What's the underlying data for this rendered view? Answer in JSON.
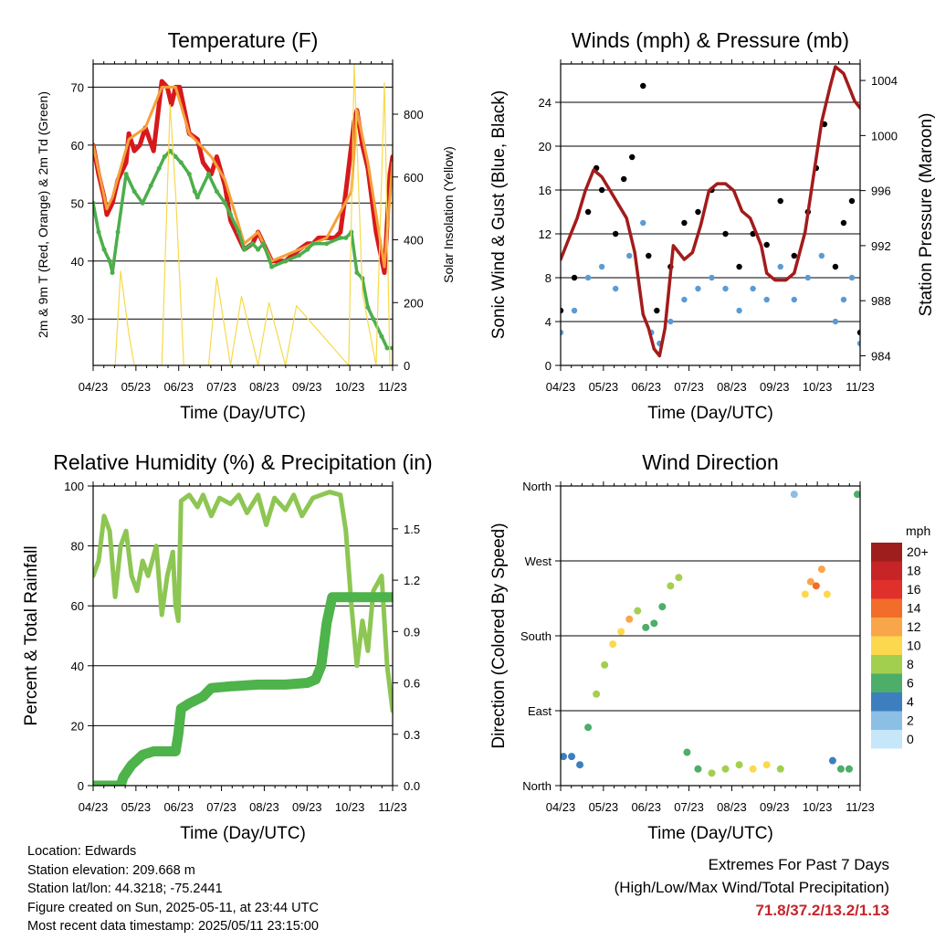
{
  "chart_data": [
    {
      "type": "line",
      "title": "Temperature (F)",
      "xlabel": "Time (Day/UTC)",
      "ylabel": "2m & 9m T (Red, Orange) & 2m Td (Green)",
      "ylabel_right": "Solar Insolation (Yellow)",
      "x_ticks": [
        "04/23",
        "05/23",
        "06/23",
        "07/23",
        "08/23",
        "09/23",
        "10/23",
        "11/23"
      ],
      "ylim": [
        22,
        74
      ],
      "yticks": [
        30,
        40,
        50,
        60,
        70
      ],
      "ylim_right": [
        0,
        960
      ],
      "yticks_right": [
        0,
        200,
        400,
        600,
        800
      ],
      "grid": true,
      "series": [
        {
          "name": "2m T",
          "color": "#d7191c",
          "x": [
            0,
            0.2,
            0.4,
            0.5,
            0.7,
            0.9,
            1.2,
            1.3,
            1.5,
            1.7,
            1.9,
            2.2,
            2.5,
            2.7,
            2.85,
            3.0,
            3.15,
            3.5,
            3.8,
            4.0,
            4.3,
            4.5,
            4.8,
            5.0,
            5.3,
            5.5,
            5.8,
            6.0,
            6.5,
            7.0,
            7.5,
            7.8,
            8.0,
            8.2,
            8.5,
            8.8,
            9.0,
            9.2,
            9.4,
            9.5,
            9.6,
            9.8,
            10.0,
            10.3,
            10.6,
            10.8,
            10.9
          ],
          "y": [
            60,
            55,
            51,
            48,
            50,
            54,
            57,
            62,
            59,
            60,
            63,
            59,
            71,
            70,
            67,
            70,
            70,
            62,
            61,
            57,
            55,
            58,
            53,
            47,
            44,
            42,
            43,
            45,
            40,
            40,
            42,
            43,
            43,
            44,
            44,
            44,
            45,
            52,
            60,
            64,
            66,
            60,
            56,
            45,
            38,
            55,
            58
          ]
        },
        {
          "name": "9m T",
          "color": "#f5a03a",
          "x": [
            0,
            0.5,
            0.7,
            1.3,
            1.9,
            2.5,
            3.0,
            3.5,
            4.3,
            4.8,
            5.5,
            6.0,
            6.5,
            7.5,
            8.5,
            9.4,
            9.6,
            10.0,
            10.6,
            10.9
          ],
          "y": [
            60,
            49,
            51,
            61,
            63,
            70,
            70,
            62,
            58,
            54,
            43,
            45,
            40,
            42,
            44,
            52,
            66,
            57,
            39,
            57
          ]
        },
        {
          "name": "2m Td",
          "color": "#4cae4c",
          "x": [
            0,
            0.2,
            0.4,
            0.6,
            0.7,
            0.9,
            1.2,
            1.5,
            1.8,
            2.1,
            2.4,
            2.6,
            2.8,
            3.0,
            3.2,
            3.5,
            3.7,
            3.8,
            4.2,
            4.5,
            4.8,
            5.0,
            5.3,
            5.5,
            5.8,
            6.0,
            6.2,
            6.5,
            7.0,
            7.5,
            7.8,
            8.0,
            8.5,
            9.0,
            9.2,
            9.4,
            9.6,
            9.8,
            10.0,
            10.2,
            10.5,
            10.7,
            10.9
          ],
          "y": [
            50,
            45,
            42,
            40,
            38,
            45,
            55,
            52,
            50,
            53,
            56,
            58,
            59,
            58,
            57,
            55,
            52,
            51,
            55,
            52,
            50,
            48,
            45,
            42,
            43,
            42,
            43,
            39,
            40,
            41,
            42,
            43,
            43,
            44,
            44,
            45,
            38,
            37,
            32,
            30,
            27,
            25,
            25
          ]
        },
        {
          "name": "Solar Insolation",
          "color": "#f7d94c",
          "axis": "right",
          "x": [
            0.8,
            1.0,
            1.3,
            1.5,
            2.5,
            2.8,
            3.0,
            3.3,
            4.2,
            4.5,
            5.0,
            5.4,
            6.0,
            6.4,
            7.0,
            7.4,
            9.3,
            9.5,
            9.8,
            10.3,
            10.6,
            10.8
          ],
          "y": [
            0,
            300,
            100,
            0,
            0,
            830,
            550,
            0,
            0,
            280,
            0,
            220,
            0,
            200,
            0,
            190,
            0,
            960,
            230,
            0,
            900,
            0
          ]
        }
      ]
    },
    {
      "type": "scatter",
      "title": "Winds (mph) & Pressure (mb)",
      "xlabel": "Time (Day/UTC)",
      "ylabel": "Sonic Wind & Gust (Blue, Black)",
      "ylabel_right": "Station Pressure (Maroon)",
      "x_ticks": [
        "04/23",
        "05/23",
        "06/23",
        "07/23",
        "08/23",
        "09/23",
        "10/23",
        "11/23"
      ],
      "ylim": [
        0,
        27.5
      ],
      "yticks": [
        0,
        4,
        8,
        12,
        16,
        20,
        24
      ],
      "ylim_right": [
        983.3,
        1005.2
      ],
      "yticks_right": [
        984,
        988,
        992,
        996,
        1000,
        1004
      ],
      "grid": true,
      "series": [
        {
          "name": "Gust",
          "color": "#000000",
          "x": [
            0,
            0.5,
            1.0,
            1.3,
            1.5,
            2.0,
            2.3,
            2.6,
            3.0,
            3.2,
            3.5,
            4.0,
            4.5,
            5.0,
            5.5,
            6.0,
            6.5,
            7.0,
            7.5,
            8.0,
            8.5,
            9.0,
            9.3,
            9.6,
            10.0,
            10.3,
            10.6,
            10.9
          ],
          "y": [
            5,
            8,
            14,
            18,
            16,
            12,
            17,
            19,
            25.5,
            10,
            5,
            9,
            13,
            14,
            16,
            12,
            9,
            12,
            11,
            15,
            10,
            14,
            18,
            22,
            9,
            13,
            15,
            3
          ]
        },
        {
          "name": "Wind",
          "color": "#5b9bd5",
          "x": [
            0,
            0.5,
            1.0,
            1.5,
            2.0,
            2.5,
            3.0,
            3.3,
            3.6,
            4.0,
            4.5,
            5.0,
            5.5,
            6.0,
            6.5,
            7.0,
            7.5,
            8.0,
            8.5,
            9.0,
            9.5,
            10.0,
            10.3,
            10.6,
            10.9
          ],
          "y": [
            3,
            5,
            8,
            9,
            7,
            10,
            13,
            3,
            2,
            4,
            6,
            7,
            8,
            7,
            5,
            7,
            6,
            9,
            6,
            8,
            10,
            4,
            6,
            8,
            2
          ]
        },
        {
          "name": "Station Pressure",
          "color": "#a31b1b",
          "axis": "right",
          "x": [
            0,
            0.3,
            0.6,
            0.9,
            1.2,
            1.5,
            1.8,
            2.1,
            2.4,
            2.7,
            3.0,
            3.2,
            3.4,
            3.6,
            3.8,
            4.1,
            4.5,
            4.8,
            5.1,
            5.4,
            5.7,
            6.0,
            6.3,
            6.6,
            6.9,
            7.1,
            7.3,
            7.5,
            7.8,
            8.2,
            8.5,
            8.9,
            9.2,
            9.5,
            9.8,
            10.0,
            10.3,
            10.5,
            10.7,
            10.9
          ],
          "y": [
            991,
            992.5,
            994,
            996,
            997.5,
            997,
            996,
            995,
            994,
            991.5,
            987,
            986,
            984.5,
            984,
            986,
            992,
            991,
            991.5,
            993.5,
            996,
            996.5,
            996.5,
            996,
            994.5,
            994,
            993,
            992,
            990,
            989.5,
            989.5,
            990,
            993,
            997,
            1001,
            1003.5,
            1005,
            1004.5,
            1003.5,
            1002.5,
            1002
          ]
        }
      ]
    },
    {
      "type": "line",
      "title": "Relative Humidity (%) & Precipitation (in)",
      "xlabel": "Time (Day/UTC)",
      "ylabel": "Percent & Total Rainfall",
      "x_ticks": [
        "04/23",
        "05/23",
        "06/23",
        "07/23",
        "08/23",
        "09/23",
        "10/23",
        "11/23"
      ],
      "ylim": [
        0,
        100
      ],
      "yticks": [
        0,
        20,
        40,
        60,
        80,
        100
      ],
      "ylim_right": [
        0,
        1.75
      ],
      "yticks_right": [
        0.0,
        0.3,
        0.6,
        0.9,
        1.2,
        1.5
      ],
      "grid": true,
      "series": [
        {
          "name": "Relative Humidity",
          "color": "#8dc653",
          "x": [
            0,
            0.2,
            0.4,
            0.6,
            0.8,
            1.0,
            1.2,
            1.4,
            1.6,
            1.8,
            2.0,
            2.3,
            2.5,
            2.7,
            2.9,
            3.0,
            3.1,
            3.2,
            3.5,
            3.8,
            4.0,
            4.3,
            4.6,
            5.0,
            5.3,
            5.6,
            6.0,
            6.3,
            6.6,
            7.0,
            7.3,
            7.6,
            8.0,
            8.3,
            8.6,
            9.0,
            9.2,
            9.4,
            9.6,
            9.8,
            10.0,
            10.2,
            10.5,
            10.7,
            10.9
          ],
          "y": [
            70,
            75,
            90,
            85,
            63,
            80,
            85,
            70,
            65,
            75,
            70,
            80,
            57,
            70,
            78,
            60,
            55,
            95,
            97,
            93,
            97,
            90,
            96,
            94,
            97,
            91,
            97,
            87,
            96,
            92,
            97,
            90,
            96,
            97,
            98,
            97,
            85,
            60,
            40,
            55,
            45,
            65,
            70,
            40,
            25
          ]
        },
        {
          "name": "Total Precipitation",
          "color": "#4db34a",
          "axis": "right",
          "x": [
            0,
            0.5,
            1.0,
            1.1,
            1.4,
            1.8,
            2.2,
            2.6,
            3.0,
            3.1,
            3.2,
            3.5,
            4.0,
            4.3,
            5.0,
            6.0,
            7.0,
            7.8,
            8.1,
            8.3,
            8.5,
            8.7,
            9.0,
            9.5,
            10.0,
            10.9
          ],
          "y": [
            0,
            0,
            0,
            0.05,
            0.12,
            0.18,
            0.2,
            0.2,
            0.2,
            0.3,
            0.45,
            0.48,
            0.52,
            0.57,
            0.58,
            0.59,
            0.59,
            0.6,
            0.62,
            0.7,
            0.95,
            1.1,
            1.1,
            1.1,
            1.1,
            1.1
          ]
        }
      ]
    },
    {
      "type": "scatter",
      "title": "Wind Direction",
      "xlabel": "Time (Day/UTC)",
      "ylabel": "Direction (Colored By Speed)",
      "x_ticks": [
        "04/23",
        "05/23",
        "06/23",
        "07/23",
        "08/23",
        "09/23",
        "10/23",
        "11/23"
      ],
      "ylim": [
        0,
        360
      ],
      "yticks": [
        "North",
        "East",
        "South",
        "West",
        "North"
      ],
      "grid": true,
      "legend": {
        "title": "mph",
        "labels": [
          "20+",
          "18",
          "16",
          "14",
          "12",
          "10",
          "8",
          "6",
          "4",
          "2",
          "0"
        ],
        "colors": [
          "#9e1d1d",
          "#c62427",
          "#e0302b",
          "#f26c2a",
          "#f9a64a",
          "#fcd84f",
          "#a3cf4f",
          "#4cae68",
          "#3d7fbe",
          "#8cbfe5",
          "#c6e6f9"
        ]
      },
      "series": [
        {
          "name": "Direction",
          "x": [
            0.1,
            0.4,
            0.7,
            1.0,
            1.3,
            1.6,
            1.9,
            2.2,
            2.5,
            2.8,
            3.1,
            3.4,
            3.7,
            4.0,
            4.3,
            4.6,
            5.0,
            5.5,
            6.0,
            6.5,
            7.0,
            7.5,
            8.0,
            8.5,
            8.9,
            9.1,
            9.3,
            9.5,
            9.7,
            9.9,
            10.2,
            10.5,
            10.8
          ],
          "y": [
            35,
            35,
            25,
            70,
            110,
            145,
            170,
            185,
            200,
            210,
            190,
            195,
            215,
            240,
            250,
            40,
            20,
            15,
            20,
            25,
            20,
            25,
            20,
            350,
            230,
            245,
            240,
            260,
            230,
            30,
            20,
            20,
            350
          ],
          "speed": [
            3,
            3,
            4,
            6,
            7,
            8,
            9,
            10,
            12,
            8,
            6,
            5,
            6,
            7,
            8,
            5,
            6,
            7,
            7,
            8,
            9,
            10,
            8,
            2,
            9,
            12,
            13,
            11,
            10,
            4,
            5,
            5,
            5
          ]
        }
      ]
    }
  ],
  "footer": {
    "location": "Location: Edwards",
    "elevation": "Station elevation: 209.668 m",
    "latlon": "Station lat/lon: 44.3218; -75.2441",
    "created": "Figure created on Sun, 2025-05-11, at 23:44 UTC",
    "recent": "Most recent data timestamp: 2025/05/11 23:15:00"
  },
  "extremes": {
    "title": "Extremes For Past 7 Days",
    "subtitle": "(High/Low/Max Wind/Total Precipitation)",
    "values": "71.8/37.2/13.2/1.13"
  }
}
